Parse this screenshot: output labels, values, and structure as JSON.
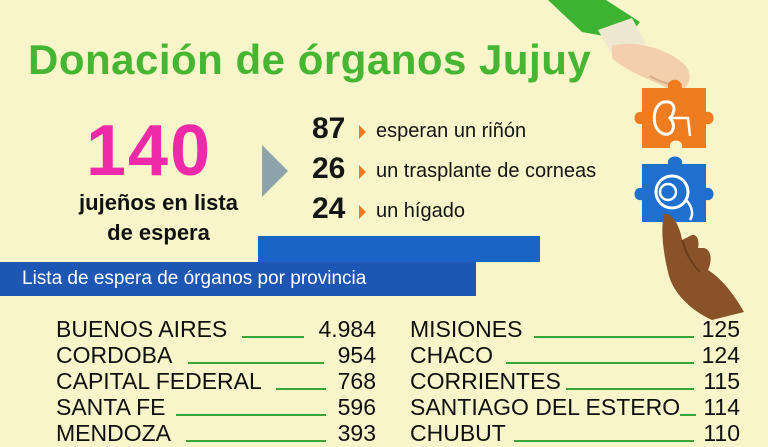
{
  "header": {
    "title": "Donación de órganos Jujuy"
  },
  "summary": {
    "total": "140",
    "subtitle_line1": "jujeños en lista",
    "subtitle_line2": "de espera"
  },
  "stats": [
    {
      "number": "87",
      "label": "esperan  un riñón"
    },
    {
      "number": "26",
      "label": "un trasplante de corneas"
    },
    {
      "number": "24",
      "label": "un hígado"
    }
  ],
  "banner": {
    "text": "Lista de espera de órganos por provincia"
  },
  "provinces_left": [
    {
      "name": "BUENOS AIRES",
      "value": "4.984"
    },
    {
      "name": "CORDOBA",
      "value": "954"
    },
    {
      "name": "CAPITAL FEDERAL",
      "value": "768"
    },
    {
      "name": "SANTA FE",
      "value": "596"
    },
    {
      "name": "MENDOZA",
      "value": "393"
    }
  ],
  "provinces_right": [
    {
      "name": "MISIONES",
      "value": "125"
    },
    {
      "name": "CHACO",
      "value": "124"
    },
    {
      "name": "CORRIENTES",
      "value": "115"
    },
    {
      "name": "SANTIAGO DEL ESTERO",
      "value": "114"
    },
    {
      "name": "CHUBUT",
      "value": "110"
    }
  ],
  "colors": {
    "background": "#f7f5c9",
    "title_green": "#46b531",
    "number_magenta": "#ee2aa8",
    "banner_blue": "#1e57b3",
    "chevron_orange": "#ef7d1b",
    "puzzle_orange": "#f07c20",
    "puzzle_blue": "#1f6fcf"
  },
  "icons": [
    "hand-holding-puzzle",
    "kidney-icon",
    "eye-icon",
    "hand-icon",
    "arrow-right-icon"
  ]
}
